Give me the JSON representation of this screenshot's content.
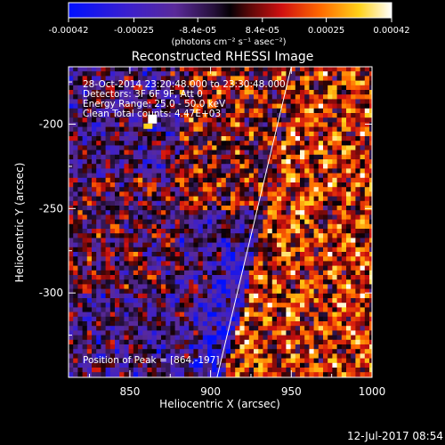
{
  "chart_data": {
    "type": "heatmap",
    "title": "Reconstructed RHESSI Image",
    "xlabel": "Heliocentric X (arcsec)",
    "ylabel": "Heliocentric Y (arcsec)",
    "xlim": [
      812,
      1000
    ],
    "ylim": [
      -350,
      -166
    ],
    "x_ticks": [
      850,
      900,
      950,
      1000
    ],
    "y_ticks": [
      -200,
      -250,
      -300
    ],
    "x_tick_labels": [
      "850",
      "900",
      "950",
      "1000"
    ],
    "y_tick_labels": [
      "-200",
      "-250",
      "-300"
    ],
    "colorbar": {
      "range": [
        -0.00042,
        0.00042
      ],
      "ticks": [
        -0.00042,
        -0.00025,
        -8.4e-05,
        8.4e-05,
        0.00025,
        0.00042
      ],
      "tick_labels": [
        "-0.00042",
        "-0.00025",
        "-8.4e-05",
        "8.4e-05",
        "0.00025",
        "0.00042"
      ],
      "units": "(photons cm⁻² s⁻¹ asec⁻²)",
      "colormap": "blue-purple-black-red-orange-yellow-white"
    },
    "annotations": {
      "time_range": "28-Oct-2014 23:20:48.000 to 23:30:48.000",
      "detectors": "Detectors: 3F 6F 9F, Att 0",
      "energy": "Energy Range: 25.0 - 50.0 keV",
      "clean": "Clean     Total counts: 4.47E+03",
      "peak": "Position of Peak = [864,-197]"
    },
    "peak_position": [
      864,
      -197
    ],
    "limb_line": {
      "x": [
        904,
        950
      ],
      "y": [
        -350,
        -166
      ]
    },
    "grid": false
  },
  "footer": {
    "timestamp": "12-Jul-2017 08:54"
  },
  "colors": {
    "background": "#000000",
    "text": "#ffffff",
    "limb": "#ffffff"
  }
}
